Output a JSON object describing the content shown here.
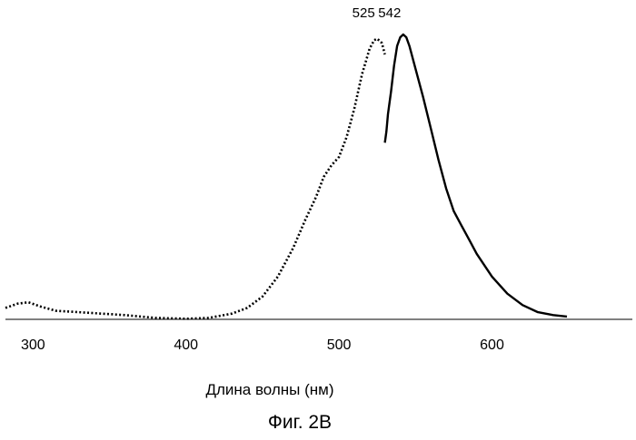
{
  "chart_data": {
    "type": "line",
    "xlabel": "Длина волны (нм)",
    "ylabel": "",
    "xlim": [
      282,
      692
    ],
    "ylim": [
      0,
      1
    ],
    "x_ticks": [
      {
        "value": 300,
        "label": "300"
      },
      {
        "value": 400,
        "label": "400"
      },
      {
        "value": 500,
        "label": "500"
      },
      {
        "value": 600,
        "label": "600"
      }
    ],
    "grid": false,
    "legend": "none",
    "annotations": [
      {
        "text": "525",
        "x": 525
      },
      {
        "text": "542",
        "x": 542
      }
    ],
    "series": [
      {
        "style": "dotted",
        "color": "#000000",
        "x": [
          282,
          290,
          297,
          305,
          315,
          330,
          345,
          360,
          380,
          400,
          415,
          430,
          440,
          450,
          460,
          470,
          478,
          485,
          490,
          495,
          500,
          505,
          510,
          515,
          520,
          523,
          525,
          528,
          530
        ],
        "y": [
          0.04,
          0.055,
          0.06,
          0.045,
          0.03,
          0.025,
          0.02,
          0.015,
          0.005,
          0.002,
          0.005,
          0.02,
          0.04,
          0.08,
          0.15,
          0.25,
          0.35,
          0.43,
          0.5,
          0.54,
          0.57,
          0.64,
          0.74,
          0.86,
          0.95,
          0.98,
          0.985,
          0.97,
          0.93
        ]
      },
      {
        "style": "solid",
        "color": "#000000",
        "x": [
          530,
          531,
          532,
          534,
          536,
          538,
          540,
          542,
          544,
          546,
          550,
          555,
          560,
          565,
          570,
          575,
          580,
          585,
          590,
          600,
          610,
          620,
          630,
          640,
          649
        ],
        "y": [
          0.62,
          0.66,
          0.72,
          0.8,
          0.89,
          0.96,
          0.99,
          1.0,
          0.99,
          0.96,
          0.88,
          0.78,
          0.67,
          0.56,
          0.46,
          0.38,
          0.33,
          0.28,
          0.23,
          0.15,
          0.09,
          0.05,
          0.025,
          0.015,
          0.01
        ]
      }
    ]
  },
  "figure": {
    "caption": "Фиг. 2В"
  }
}
